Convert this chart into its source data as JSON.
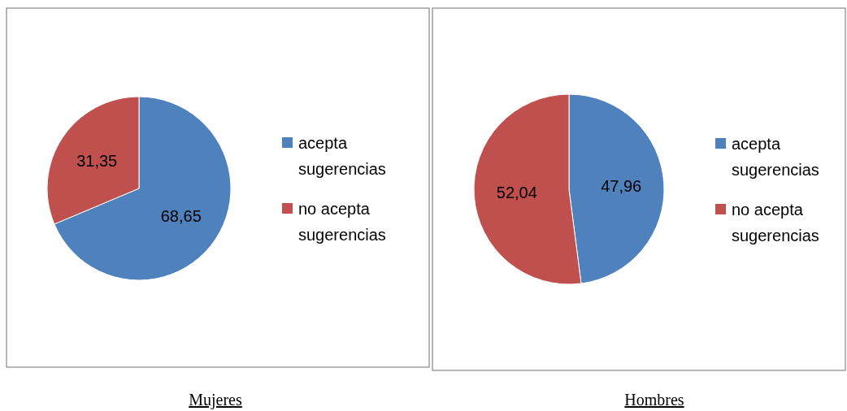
{
  "chart_data": [
    {
      "type": "pie",
      "title": "Mujeres",
      "categories": [
        "acepta sugerencias",
        "no acepta sugerencias"
      ],
      "values": [
        68.65,
        31.35
      ],
      "colors": [
        "#4f81bd",
        "#c0504d"
      ],
      "value_labels": [
        "68,65",
        "31,35"
      ],
      "legend": "right"
    },
    {
      "type": "pie",
      "title": "Hombres",
      "categories": [
        "acepta sugerencias",
        "no acepta sugerencias"
      ],
      "values": [
        47.96,
        52.04
      ],
      "colors": [
        "#4f81bd",
        "#c0504d"
      ],
      "value_labels": [
        "47,96",
        "52,04"
      ],
      "legend": "right"
    }
  ]
}
